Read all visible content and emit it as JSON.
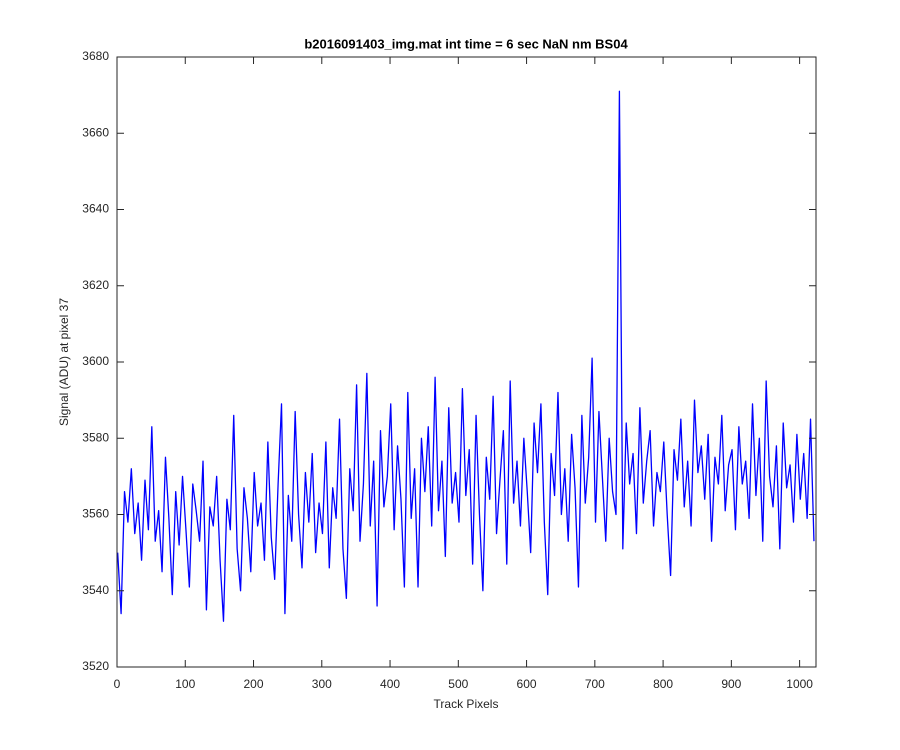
{
  "chart_data": {
    "type": "line",
    "title": "b2016091403_img.mat int time = 6 sec  NaN nm BS04",
    "x_label": "Track Pixels",
    "y_label": "Signal (ADU) at pixel 37",
    "xlim": [
      0,
      1024
    ],
    "xticks": [
      0,
      100,
      200,
      300,
      400,
      500,
      600,
      700,
      800,
      900,
      1000
    ],
    "ylim": [
      3520,
      3680
    ],
    "yticks": [
      3520,
      3540,
      3560,
      3580,
      3600,
      3620,
      3640,
      3660,
      3680
    ],
    "series": [
      {
        "color": "#0000ff",
        "x": [
          1,
          6,
          11,
          16,
          21,
          26,
          31,
          36,
          41,
          46,
          51,
          56,
          61,
          66,
          71,
          76,
          81,
          86,
          91,
          96,
          101,
          106,
          111,
          116,
          121,
          126,
          131,
          136,
          141,
          146,
          151,
          156,
          161,
          166,
          171,
          176,
          181,
          186,
          191,
          196,
          201,
          206,
          211,
          216,
          221,
          226,
          231,
          236,
          241,
          246,
          251,
          256,
          261,
          266,
          271,
          276,
          281,
          286,
          291,
          296,
          301,
          306,
          311,
          316,
          321,
          326,
          331,
          336,
          341,
          346,
          351,
          356,
          361,
          366,
          371,
          376,
          381,
          386,
          391,
          396,
          401,
          406,
          411,
          416,
          421,
          426,
          431,
          436,
          441,
          446,
          451,
          456,
          461,
          466,
          471,
          476,
          481,
          486,
          491,
          496,
          501,
          506,
          511,
          516,
          521,
          526,
          531,
          536,
          541,
          546,
          551,
          556,
          561,
          566,
          571,
          576,
          581,
          586,
          591,
          596,
          601,
          606,
          611,
          616,
          621,
          626,
          631,
          636,
          641,
          646,
          651,
          656,
          661,
          666,
          671,
          676,
          681,
          686,
          691,
          696,
          701,
          706,
          711,
          716,
          721,
          726,
          731,
          736,
          741,
          746,
          751,
          756,
          761,
          766,
          771,
          776,
          781,
          786,
          791,
          796,
          801,
          806,
          811,
          816,
          821,
          826,
          831,
          836,
          841,
          846,
          851,
          856,
          861,
          866,
          871,
          876,
          881,
          886,
          891,
          896,
          901,
          906,
          911,
          916,
          921,
          926,
          931,
          936,
          941,
          946,
          951,
          956,
          961,
          966,
          971,
          976,
          981,
          986,
          991,
          996,
          1001,
          1006,
          1011,
          1016,
          1021
        ],
        "values": [
          3550,
          3534,
          3566,
          3558,
          3572,
          3555,
          3563,
          3548,
          3569,
          3556,
          3583,
          3553,
          3561,
          3545,
          3575,
          3559,
          3539,
          3566,
          3552,
          3570,
          3556,
          3541,
          3568,
          3561,
          3553,
          3574,
          3535,
          3562,
          3557,
          3570,
          3548,
          3532,
          3564,
          3556,
          3586,
          3551,
          3540,
          3567,
          3559,
          3545,
          3571,
          3557,
          3563,
          3548,
          3579,
          3554,
          3543,
          3568,
          3589,
          3534,
          3565,
          3553,
          3587,
          3560,
          3546,
          3571,
          3558,
          3576,
          3550,
          3563,
          3555,
          3579,
          3546,
          3567,
          3559,
          3585,
          3551,
          3538,
          3572,
          3561,
          3594,
          3553,
          3568,
          3597,
          3557,
          3574,
          3536,
          3582,
          3562,
          3570,
          3589,
          3556,
          3578,
          3564,
          3541,
          3592,
          3559,
          3572,
          3541,
          3580,
          3566,
          3583,
          3557,
          3596,
          3561,
          3574,
          3549,
          3588,
          3563,
          3571,
          3558,
          3593,
          3565,
          3577,
          3547,
          3586,
          3560,
          3540,
          3575,
          3564,
          3591,
          3555,
          3569,
          3582,
          3547,
          3595,
          3563,
          3574,
          3557,
          3580,
          3566,
          3550,
          3584,
          3571,
          3589,
          3558,
          3539,
          3576,
          3565,
          3592,
          3560,
          3572,
          3553,
          3581,
          3567,
          3541,
          3586,
          3563,
          3575,
          3601,
          3558,
          3587,
          3570,
          3553,
          3580,
          3566,
          3560,
          3671,
          3551,
          3584,
          3568,
          3576,
          3555,
          3588,
          3563,
          3574,
          3582,
          3557,
          3571,
          3566,
          3579,
          3560,
          3544,
          3577,
          3569,
          3585,
          3562,
          3574,
          3557,
          3590,
          3571,
          3578,
          3564,
          3581,
          3553,
          3575,
          3568,
          3586,
          3561,
          3573,
          3577,
          3556,
          3583,
          3568,
          3574,
          3559,
          3589,
          3565,
          3580,
          3553,
          3595,
          3570,
          3562,
          3578,
          3551,
          3584,
          3567,
          3573,
          3558,
          3581,
          3564,
          3576,
          3559,
          3585,
          3553
        ]
      }
    ]
  }
}
